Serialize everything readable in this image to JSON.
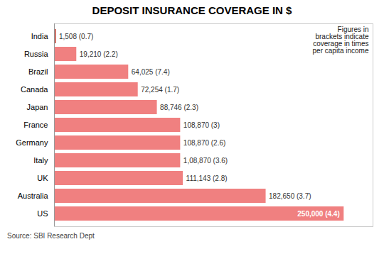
{
  "chart_data": {
    "type": "bar",
    "orientation": "horizontal",
    "title": "DEPOSIT INSURANCE COVERAGE IN $",
    "categories": [
      "India",
      "Russia",
      "Brazil",
      "Canada",
      "Japan",
      "France",
      "Germany",
      "Italy",
      "UK",
      "Australia",
      "US"
    ],
    "values": [
      1508,
      19210,
      64025,
      72254,
      88746,
      108870,
      108870,
      108870,
      111143,
      182650,
      250000
    ],
    "value_labels": [
      "1,508 (0.7)",
      "19,210 (2.2)",
      "64,025 (7.4)",
      "72,254 (1.7)",
      "88,746 (2.3)",
      "108,870 (3)",
      "108,870 (2.6)",
      "1,08,870 (3.6)",
      "111,143 (2.8)",
      "182,650 (3.7)",
      "250,000 (4.4)"
    ],
    "colors": [
      "#C0392B",
      "#F08080",
      "#F08080",
      "#F08080",
      "#F08080",
      "#F08080",
      "#F08080",
      "#F08080",
      "#F08080",
      "#F08080",
      "#F08080"
    ],
    "xlim": [
      0,
      275000
    ],
    "data_labels": true,
    "tick_labels": "y",
    "grid": false,
    "annotation": "Figures in\nbrackets indicate\ncoverage in times\nper capita income",
    "source": "Source: SBI Research Dept"
  }
}
